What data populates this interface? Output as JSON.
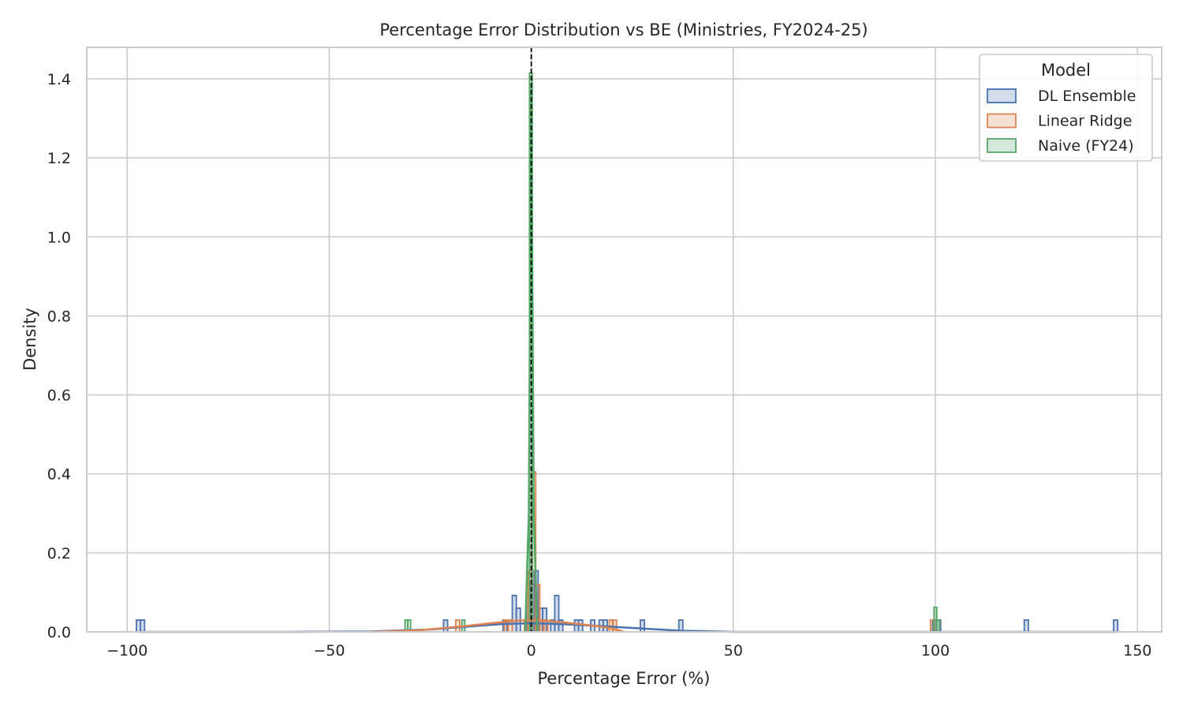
{
  "chart_data": {
    "type": "histogram",
    "title": "Percentage Error Distribution vs BE (Ministries, FY2024-25)",
    "xlabel": "Percentage Error (%)",
    "ylabel": "Density",
    "xlim": [
      -110,
      156
    ],
    "ylim": [
      0,
      1.48
    ],
    "xticks": [
      -100,
      -50,
      0,
      50,
      100,
      150
    ],
    "xtick_labels": [
      "−100",
      "−50",
      "0",
      "50",
      "100",
      "150"
    ],
    "yticks": [
      0,
      0.2,
      0.4,
      0.6,
      0.8,
      1.0,
      1.2,
      1.4
    ],
    "ytick_labels": [
      "0.0",
      "0.2",
      "0.4",
      "0.6",
      "0.8",
      "1.0",
      "1.2",
      "1.4"
    ],
    "grid": true,
    "reference_line": {
      "x": 0,
      "style": "dashed",
      "color": "#000000"
    },
    "legend": {
      "title": "Model",
      "placement": "top-right"
    },
    "series": [
      {
        "name": "DL Ensemble",
        "color": "#4c72b0",
        "bin_width": 1,
        "bins": [
          {
            "x": -97.2,
            "y": 0.03
          },
          {
            "x": -96.2,
            "y": 0.03
          },
          {
            "x": -21.2,
            "y": 0.03
          },
          {
            "x": -6.5,
            "y": 0.03
          },
          {
            "x": -4.2,
            "y": 0.092
          },
          {
            "x": -3.2,
            "y": 0.06
          },
          {
            "x": -0.7,
            "y": 0.09
          },
          {
            "x": 0.3,
            "y": 0.12
          },
          {
            "x": 1.2,
            "y": 0.155
          },
          {
            "x": 2.3,
            "y": 0.06
          },
          {
            "x": 3.3,
            "y": 0.06
          },
          {
            "x": 5.3,
            "y": 0.03
          },
          {
            "x": 6.3,
            "y": 0.092
          },
          {
            "x": 7.3,
            "y": 0.03
          },
          {
            "x": 11.2,
            "y": 0.03
          },
          {
            "x": 12.2,
            "y": 0.03
          },
          {
            "x": 15.2,
            "y": 0.03
          },
          {
            "x": 17.3,
            "y": 0.03
          },
          {
            "x": 18.3,
            "y": 0.03
          },
          {
            "x": 27.5,
            "y": 0.03
          },
          {
            "x": 37.0,
            "y": 0.03
          },
          {
            "x": 99.8,
            "y": 0.03
          },
          {
            "x": 100.8,
            "y": 0.03
          },
          {
            "x": 122.5,
            "y": 0.03
          },
          {
            "x": 144.6,
            "y": 0.03
          }
        ],
        "kde": [
          {
            "x": -97,
            "y": 0.0
          },
          {
            "x": -60,
            "y": 0.0
          },
          {
            "x": -40,
            "y": 0.001
          },
          {
            "x": -25,
            "y": 0.006
          },
          {
            "x": -15,
            "y": 0.014
          },
          {
            "x": -7,
            "y": 0.02
          },
          {
            "x": 0,
            "y": 0.022
          },
          {
            "x": 7,
            "y": 0.02
          },
          {
            "x": 15,
            "y": 0.016
          },
          {
            "x": 25,
            "y": 0.01
          },
          {
            "x": 37,
            "y": 0.003
          },
          {
            "x": 50,
            "y": 0.0
          },
          {
            "x": 145,
            "y": 0.0
          }
        ]
      },
      {
        "name": "Linear Ridge",
        "color": "#dd8452",
        "bin_width": 1,
        "bins": [
          {
            "x": -18.2,
            "y": 0.03
          },
          {
            "x": -6.2,
            "y": 0.03
          },
          {
            "x": -5.2,
            "y": 0.03
          },
          {
            "x": -1.2,
            "y": 0.03
          },
          {
            "x": -0.3,
            "y": 0.155
          },
          {
            "x": 0.6,
            "y": 0.405
          },
          {
            "x": 1.6,
            "y": 0.12
          },
          {
            "x": 2.6,
            "y": 0.03
          },
          {
            "x": 3.6,
            "y": 0.03
          },
          {
            "x": 19.8,
            "y": 0.03
          },
          {
            "x": 20.6,
            "y": 0.03
          },
          {
            "x": 99.3,
            "y": 0.03
          }
        ],
        "kde": [
          {
            "x": -40,
            "y": 0.0
          },
          {
            "x": -28,
            "y": 0.004
          },
          {
            "x": -18,
            "y": 0.013
          },
          {
            "x": -10,
            "y": 0.022
          },
          {
            "x": -4,
            "y": 0.028
          },
          {
            "x": 0,
            "y": 0.03
          },
          {
            "x": 4,
            "y": 0.028
          },
          {
            "x": 10,
            "y": 0.022
          },
          {
            "x": 16,
            "y": 0.015
          },
          {
            "x": 20,
            "y": 0.009
          },
          {
            "x": 23,
            "y": 0.0
          }
        ]
      },
      {
        "name": "Naive (FY24)",
        "color": "#55a868",
        "bin_width": 0.7,
        "bins": [
          {
            "x": -30.9,
            "y": 0.03
          },
          {
            "x": -30.2,
            "y": 0.03
          },
          {
            "x": -16.8,
            "y": 0.03
          },
          {
            "x": -0.1,
            "y": 1.415
          },
          {
            "x": 100.0,
            "y": 0.062
          },
          {
            "x": 100.7,
            "y": 0.03
          }
        ],
        "kde": [
          {
            "x": -1.5,
            "y": 0.0
          },
          {
            "x": -0.6,
            "y": 0.3
          },
          {
            "x": 0,
            "y": 1.38
          },
          {
            "x": 0.6,
            "y": 0.3
          },
          {
            "x": 1.5,
            "y": 0.0
          }
        ]
      }
    ]
  }
}
